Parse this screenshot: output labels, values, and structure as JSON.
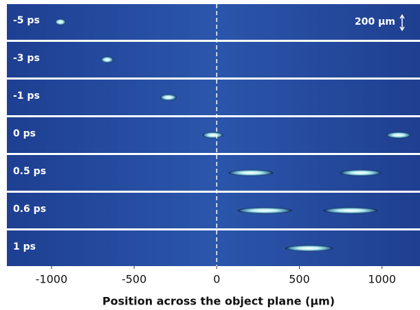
{
  "chart_data": {
    "type": "imagestrip",
    "xlabel": "Position across the object plane (µm)",
    "xlim": [
      -1270,
      1230
    ],
    "xticks": [
      -1000,
      -500,
      0,
      500,
      1000
    ],
    "zero_line": 0,
    "scale_label": "200 µm",
    "background": "#23469a",
    "panels": [
      {
        "name": "-5 ps",
        "x": [
          -946
        ],
        "widths": [
          65
        ]
      },
      {
        "name": "-3 ps",
        "x": [
          -663
        ],
        "widths": [
          75
        ]
      },
      {
        "name": "-1 ps",
        "x": [
          -293
        ],
        "widths": [
          100
        ]
      },
      {
        "name": "0 ps",
        "x": [
          -23,
          1100
        ],
        "widths": [
          125,
          150
        ]
      },
      {
        "name": "0.5 ps",
        "x": [
          206,
          871
        ],
        "widths": [
          270,
          250
        ]
      },
      {
        "name": "0.6 ps",
        "x": [
          290,
          810
        ],
        "widths": [
          330,
          330
        ]
      },
      {
        "name": "1 ps",
        "x": [
          559
        ],
        "widths": [
          290
        ]
      }
    ]
  }
}
